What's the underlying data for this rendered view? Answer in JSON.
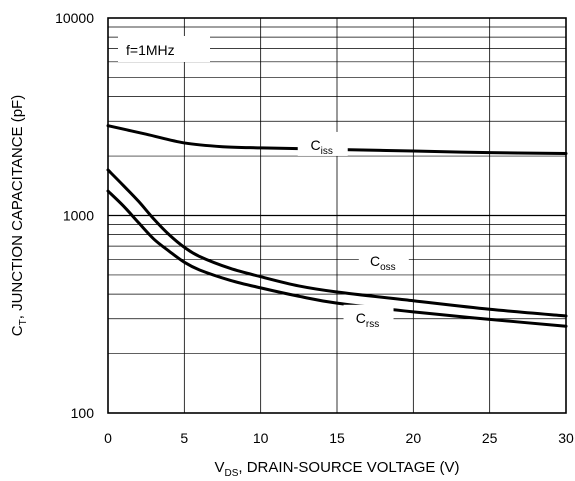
{
  "chart_data": {
    "type": "line",
    "x_scale": "linear",
    "y_scale": "log",
    "xlim": [
      0,
      30
    ],
    "ylim": [
      100,
      10000
    ],
    "x_ticks": [
      0,
      5,
      10,
      15,
      20,
      25,
      30
    ],
    "x_tick_labels": [
      "0",
      "5",
      "10",
      "15",
      "20",
      "25",
      "30"
    ],
    "y_ticks": [
      100,
      1000,
      10000
    ],
    "y_tick_labels": [
      "100",
      "1000",
      "10000"
    ],
    "grid": true,
    "xlabel": {
      "main": "V",
      "sub": "DS",
      "rest": ", DRAIN-SOURCE VOLTAGE (V)"
    },
    "ylabel": {
      "main": "C",
      "sub": "T",
      "rest": ", JUNCTION CAPACITANCE (pF)"
    },
    "annotation": "f=1MHz",
    "series": [
      {
        "name": "Ciss",
        "label_main": "C",
        "label_sub": "iss",
        "label_at": [
          14,
          2250
        ],
        "x": [
          0,
          2.5,
          5,
          7.5,
          10,
          12.5,
          15,
          20,
          25,
          30
        ],
        "values": [
          2850,
          2580,
          2330,
          2230,
          2200,
          2180,
          2160,
          2120,
          2080,
          2060
        ]
      },
      {
        "name": "Coss",
        "label_main": "C",
        "label_sub": "oss",
        "label_at": [
          18,
          580
        ],
        "x": [
          0,
          1,
          2,
          3,
          4,
          5,
          6,
          8,
          10,
          12.5,
          15,
          20,
          25,
          30
        ],
        "values": [
          1700,
          1420,
          1180,
          960,
          800,
          690,
          620,
          540,
          490,
          440,
          410,
          370,
          335,
          310
        ]
      },
      {
        "name": "Crss",
        "label_main": "C",
        "label_sub": "rss",
        "label_at": [
          17,
          300
        ],
        "x": [
          0,
          1,
          2,
          3,
          4,
          5,
          6,
          8,
          10,
          12.5,
          15,
          20,
          25,
          30
        ],
        "values": [
          1330,
          1120,
          920,
          760,
          660,
          580,
          530,
          470,
          430,
          390,
          360,
          325,
          298,
          275
        ]
      }
    ]
  }
}
